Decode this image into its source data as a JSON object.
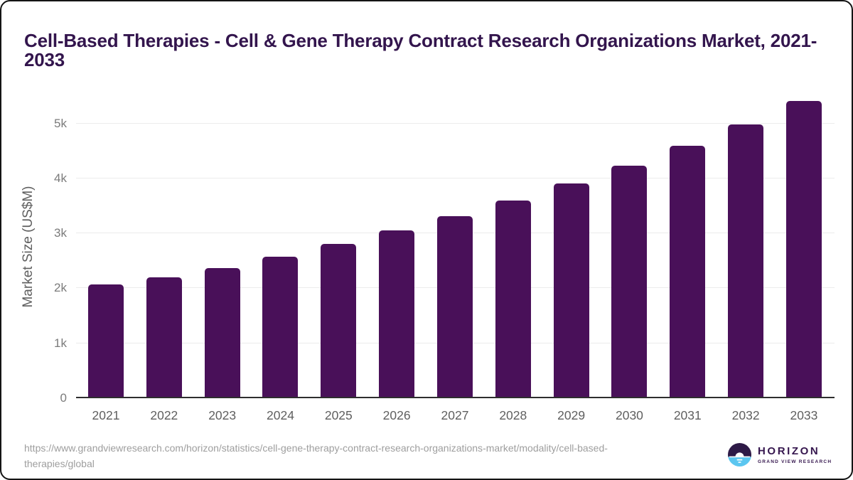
{
  "header": {
    "title": "Cell-Based Therapies - Cell & Gene Therapy Contract Research Organizations Market, 2021-2033"
  },
  "chart_data": {
    "type": "bar",
    "title": "Cell-Based Therapies - Cell & Gene Therapy Contract Research Organizations Market, 2021-2033",
    "categories": [
      "2021",
      "2022",
      "2023",
      "2024",
      "2025",
      "2026",
      "2027",
      "2028",
      "2029",
      "2030",
      "2031",
      "2032",
      "2033"
    ],
    "values": [
      2040,
      2170,
      2340,
      2550,
      2780,
      3030,
      3290,
      3570,
      3880,
      4210,
      4570,
      4950,
      5380
    ],
    "xlabel": "",
    "ylabel": "Market Size (US$M)",
    "ylim": [
      0,
      5500
    ],
    "yticks": [
      {
        "value": 0,
        "label": "0"
      },
      {
        "value": 1000,
        "label": "1k"
      },
      {
        "value": 2000,
        "label": "2k"
      },
      {
        "value": 3000,
        "label": "3k"
      },
      {
        "value": 4000,
        "label": "4k"
      },
      {
        "value": 5000,
        "label": "5k"
      }
    ],
    "grid": "horizontal",
    "legend": "none",
    "bar_color": "#491059"
  },
  "footer": {
    "source_url": "https://www.grandviewresearch.com/horizon/statistics/cell-gene-therapy-contract-research-organizations-market/modality/cell-based-therapies/global",
    "logo": {
      "icon": "horizon-sun-circle-icon",
      "brand": "HORIZON",
      "sub_brand": "GRAND VIEW RESEARCH"
    }
  },
  "colors": {
    "title_text": "#33154d",
    "bar": "#491059",
    "gridline": "#ececec",
    "axis_line": "#2e2e2e",
    "tick_text": "#7b7b7b",
    "logo_dark": "#2e1a47",
    "logo_blue": "#5bc6f0"
  }
}
